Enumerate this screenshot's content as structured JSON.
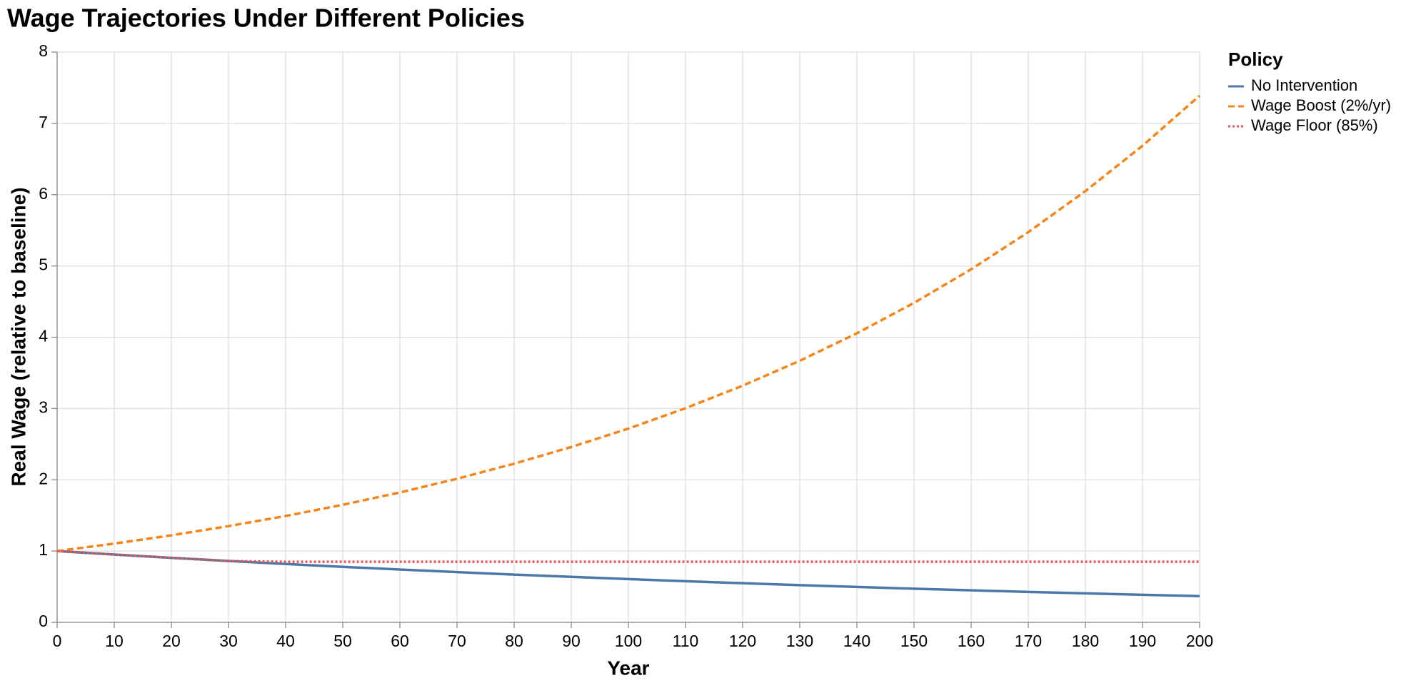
{
  "chart_data": {
    "type": "line",
    "title": "Wage Trajectories Under Different Policies",
    "x_label": "Year",
    "y_label": "Real Wage (relative to baseline)",
    "legend_title": "Policy",
    "legend": "top-right-outside",
    "grid": true,
    "x": [
      0,
      10,
      20,
      30,
      40,
      50,
      60,
      70,
      80,
      90,
      100,
      110,
      120,
      130,
      140,
      150,
      160,
      170,
      180,
      190,
      200
    ],
    "series": [
      {
        "name": "No Intervention",
        "color": "#4c78a8",
        "dash": "solid",
        "values": [
          1,
          0.951,
          0.905,
          0.861,
          0.819,
          0.779,
          0.741,
          0.705,
          0.67,
          0.638,
          0.607,
          0.577,
          0.549,
          0.522,
          0.497,
          0.472,
          0.449,
          0.427,
          0.407,
          0.387,
          0.368
        ]
      },
      {
        "name": "Wage Boost (2%/yr)",
        "color": "#f58518",
        "dash": "dashed",
        "values": [
          1,
          1.105,
          1.221,
          1.35,
          1.492,
          1.649,
          1.822,
          2.014,
          2.226,
          2.46,
          2.718,
          3.004,
          3.32,
          3.669,
          4.055,
          4.482,
          4.953,
          5.474,
          6.05,
          6.686,
          7.389
        ]
      },
      {
        "name": "Wage Floor (85%)",
        "color": "#e45756",
        "dash": "dotted",
        "values": [
          1,
          0.951,
          0.905,
          0.861,
          0.85,
          0.85,
          0.85,
          0.85,
          0.85,
          0.85,
          0.85,
          0.85,
          0.85,
          0.85,
          0.85,
          0.85,
          0.85,
          0.85,
          0.85,
          0.85,
          0.85
        ]
      }
    ],
    "xlim": [
      0,
      200
    ],
    "xticks": [
      0,
      10,
      20,
      30,
      40,
      50,
      60,
      70,
      80,
      90,
      100,
      110,
      120,
      130,
      140,
      150,
      160,
      170,
      180,
      190,
      200
    ],
    "ylim": [
      0,
      8
    ],
    "yticks": [
      0,
      1,
      2,
      3,
      4,
      5,
      6,
      7,
      8
    ]
  }
}
